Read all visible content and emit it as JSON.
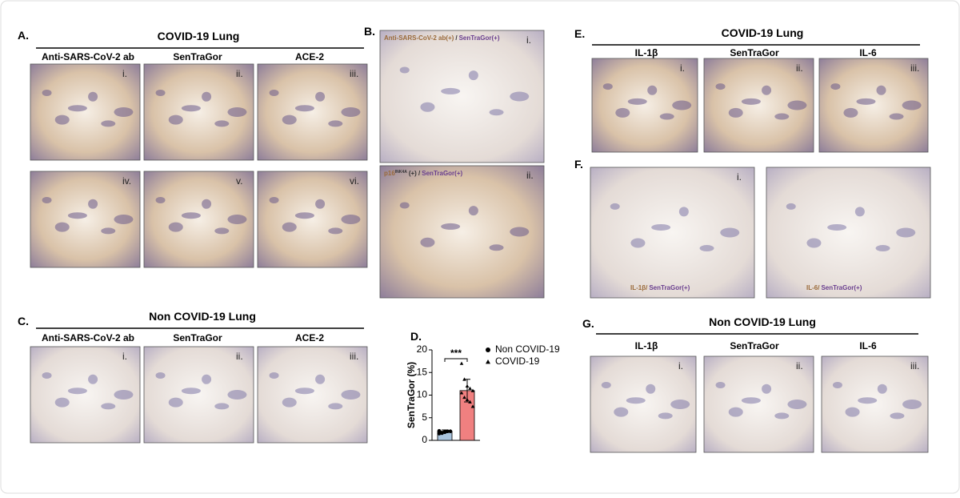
{
  "panels": {
    "A": {
      "label": "A.",
      "title": "COVID-19  Lung",
      "headers": [
        "Anti-SARS-CoV-2 ab",
        "SenTraGor",
        "ACE-2"
      ],
      "images": [
        "i.",
        "ii.",
        "iii.",
        "iv.",
        "v.",
        "vi."
      ]
    },
    "B": {
      "label": "B.",
      "images": [
        {
          "index": "i.",
          "caption": [
            "Anti-SARS-CoV-2 ab(+)",
            "/",
            "SenTraGor(+)"
          ]
        },
        {
          "index": "ii.",
          "caption": [
            "p16",
            "INK4A",
            "(+) /",
            "SenTraGor(+)"
          ]
        }
      ]
    },
    "C": {
      "label": "C.",
      "title": "Non COVID-19 Lung",
      "headers": [
        "Anti-SARS-CoV-2 ab",
        "SenTraGor",
        "ACE-2"
      ],
      "images": [
        "i.",
        "ii.",
        "iii."
      ]
    },
    "D": {
      "label": "D."
    },
    "E": {
      "label": "E.",
      "title": "COVID-19  Lung",
      "headers": [
        "IL-1β",
        "SenTraGor",
        "IL-6"
      ],
      "images": [
        "i.",
        "ii.",
        "iii."
      ]
    },
    "F": {
      "label": "F.",
      "images": [
        {
          "index": "i.",
          "caption": [
            "IL-1β/",
            "SenTraGor(+)"
          ]
        },
        {
          "index": "",
          "caption": [
            "IL-6/",
            "SenTraGor(+)"
          ]
        }
      ]
    },
    "G": {
      "label": "G.",
      "title": "Non COVID-19 Lung",
      "headers": [
        "IL-1β",
        "SenTraGor",
        "IL-6"
      ],
      "images": [
        "i.",
        "ii.",
        "iii."
      ]
    }
  },
  "chart_data": {
    "type": "bar",
    "ylabel": "SenTraGor (%)",
    "significance": "***",
    "ylim": [
      0,
      20
    ],
    "yticks": [
      0,
      5,
      10,
      15,
      20
    ],
    "series": [
      {
        "name": "Non COVID-19",
        "color": "#a9c4de",
        "marker": "circle",
        "values": [
          2
        ],
        "errors": [
          0.3
        ],
        "points": [
          1.5,
          1.6,
          1.8,
          2,
          2,
          2.1,
          1.7,
          1.9
        ]
      },
      {
        "name": "COVID-19",
        "color": "#f08080",
        "marker": "triangle",
        "values": [
          11
        ],
        "errors": [
          2.5
        ],
        "points": [
          17,
          13.5,
          12,
          11.5,
          11,
          10.5,
          9.5,
          9,
          8.5,
          7.5
        ]
      }
    ]
  }
}
